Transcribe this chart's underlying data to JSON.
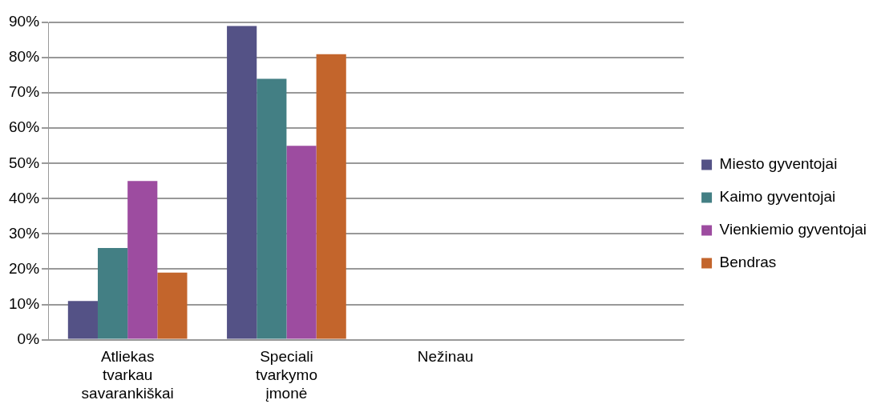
{
  "chart_data": {
    "type": "bar",
    "categories": [
      "Atliekas tvarkau savarankiškai",
      "Speciali tvarkymo įmonė",
      "Nežinau",
      null
    ],
    "series": [
      {
        "name": "Miesto gyventojai",
        "color": "#545286",
        "values": [
          11,
          89,
          0,
          null
        ]
      },
      {
        "name": "Kaimo gyventojai",
        "color": "#437f84",
        "values": [
          26,
          74,
          0,
          null
        ]
      },
      {
        "name": "Vienkiemio gyventojai",
        "color": "#9d4ca0",
        "values": [
          45,
          55,
          0,
          null
        ]
      },
      {
        "name": "Bendras",
        "color": "#c3652c",
        "values": [
          19,
          81,
          0,
          null
        ]
      }
    ],
    "ylim": [
      0,
      90
    ],
    "yticks": [
      {
        "value": 0,
        "label": "0%"
      },
      {
        "value": 10,
        "label": "10%"
      },
      {
        "value": 20,
        "label": "20%"
      },
      {
        "value": 30,
        "label": "30%"
      },
      {
        "value": 40,
        "label": "40%"
      },
      {
        "value": 50,
        "label": "50%"
      },
      {
        "value": 60,
        "label": "60%"
      },
      {
        "value": 70,
        "label": "70%"
      },
      {
        "value": 80,
        "label": "80%"
      },
      {
        "value": 90,
        "label": "90%"
      }
    ],
    "grid": "y",
    "legend": "right"
  }
}
